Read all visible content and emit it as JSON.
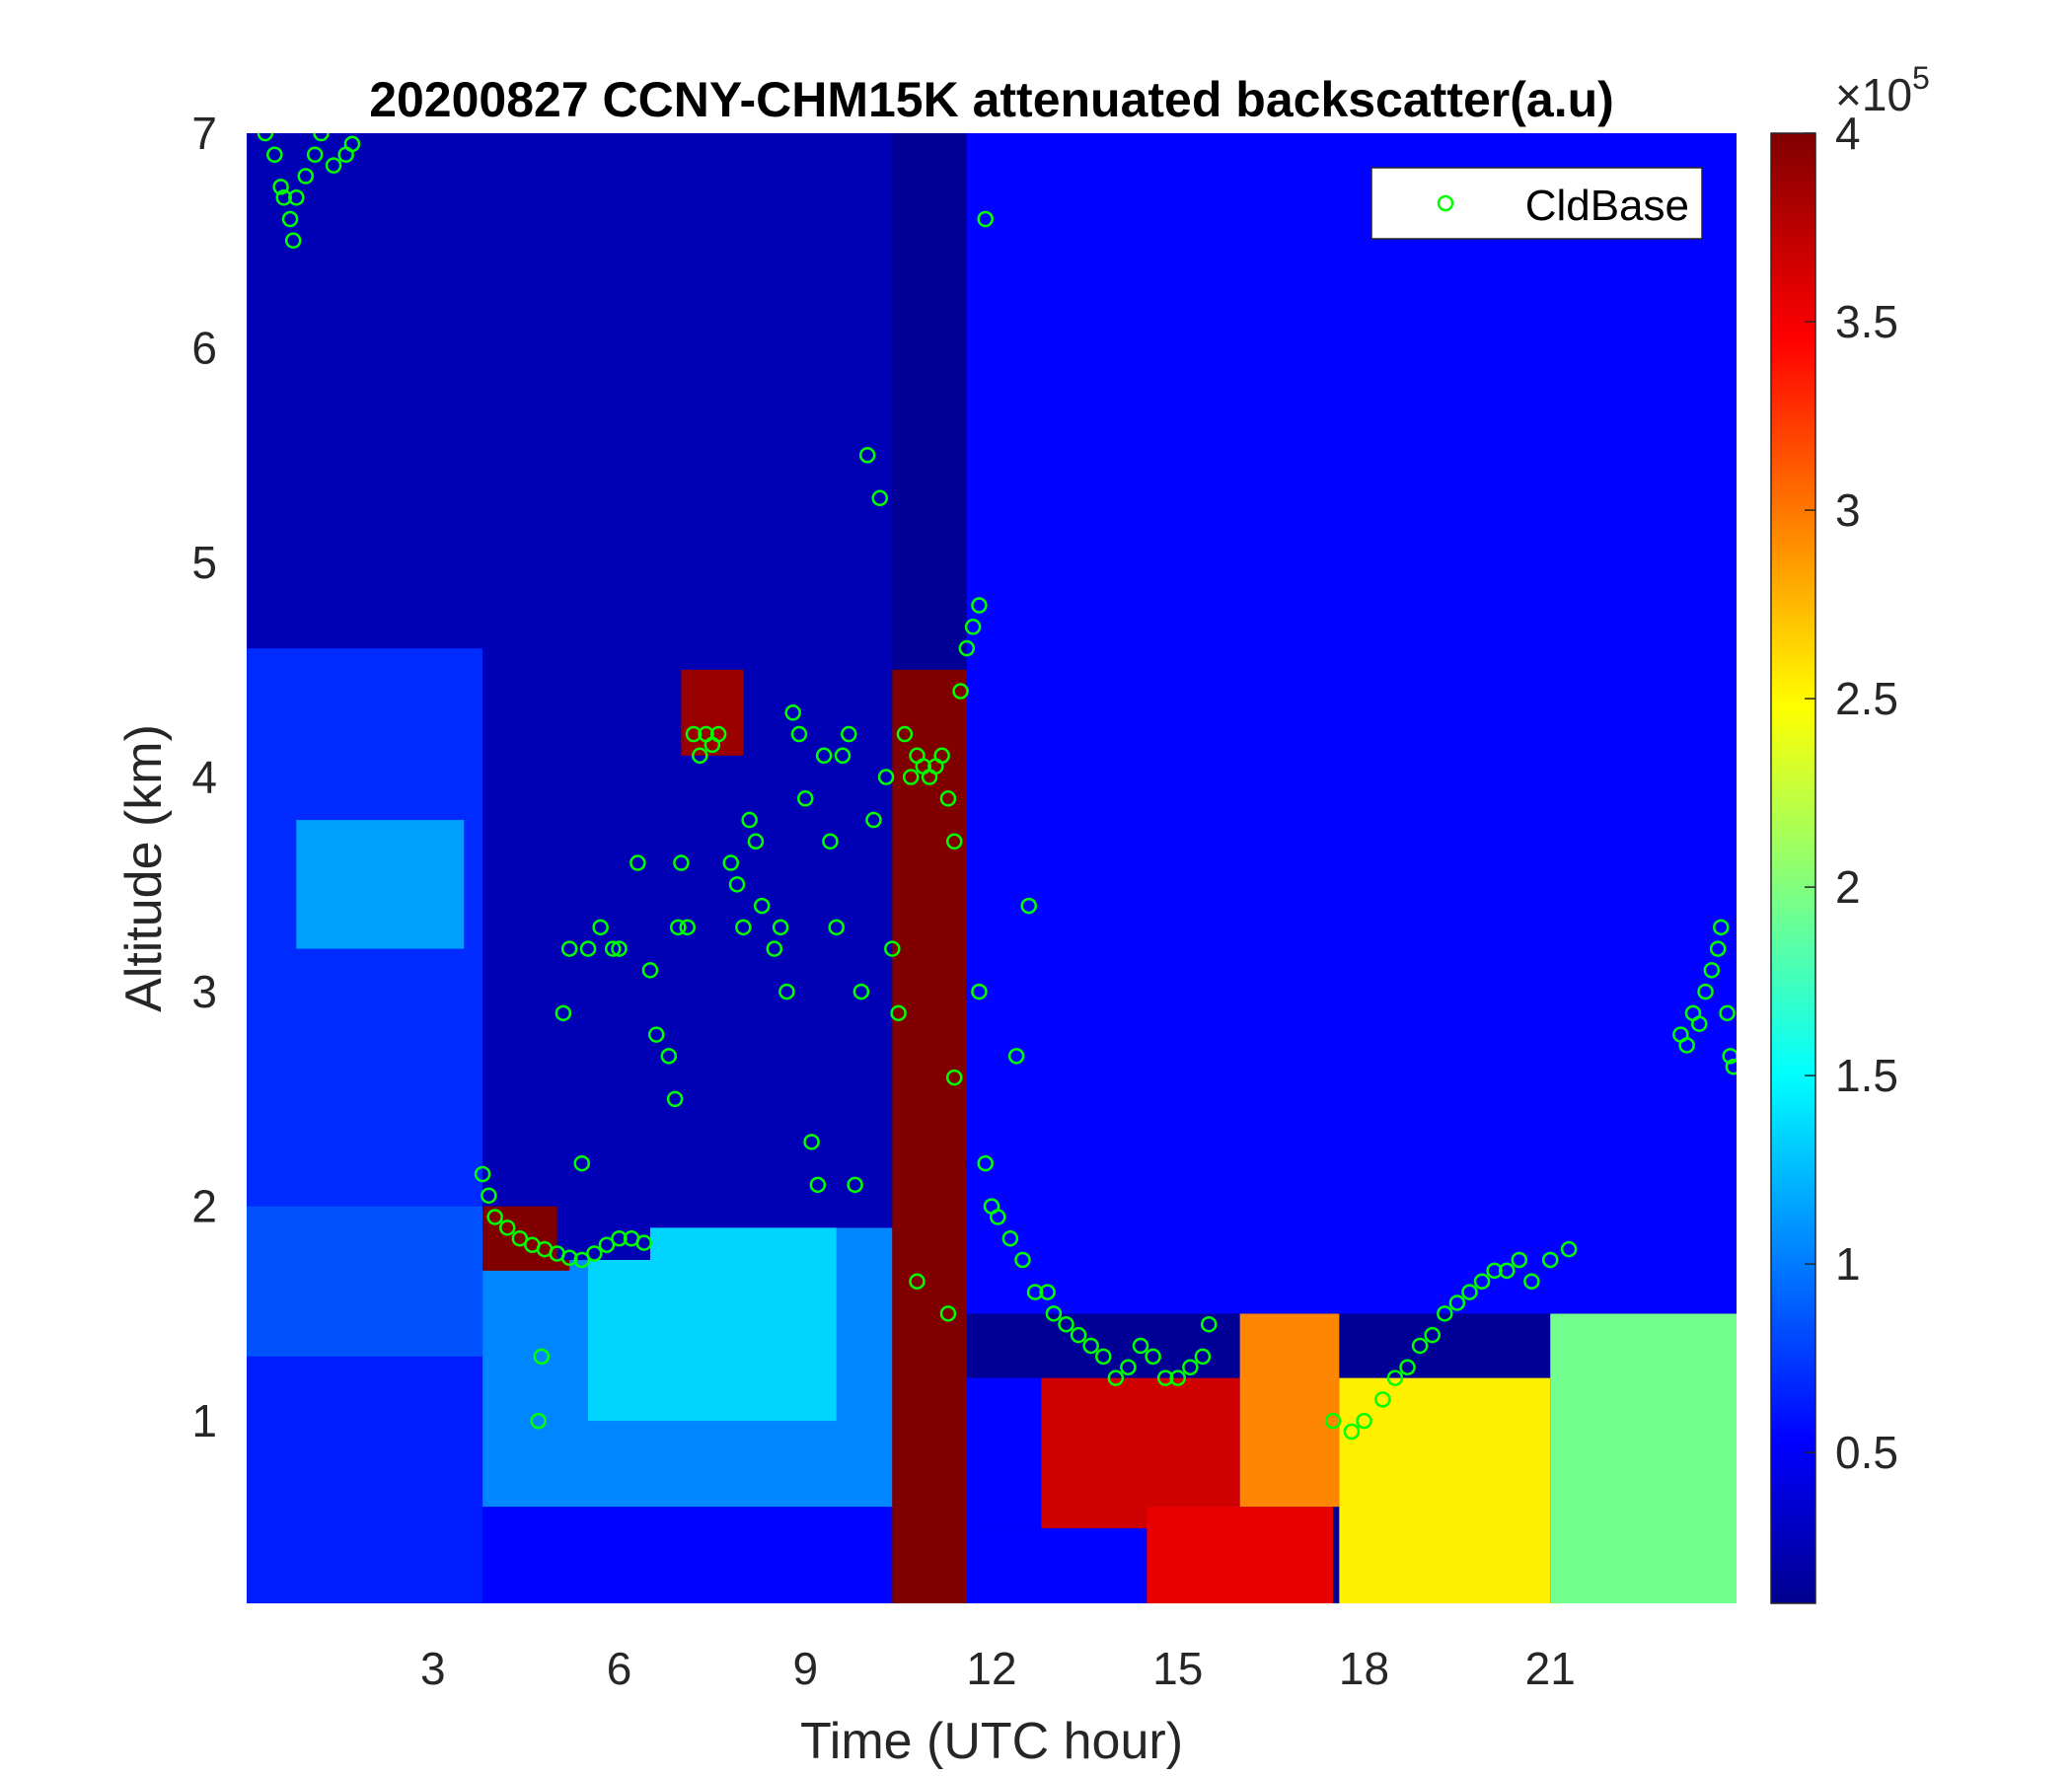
{
  "chart_data": {
    "type": "heatmap",
    "title": "20200827 CCNY-CHM15K attenuated backscatter(a.u)",
    "xlabel": "Time (UTC hour)",
    "ylabel": "Altitude (km)",
    "xlim": [
      0,
      24
    ],
    "ylim": [
      0.15,
      7
    ],
    "xticks": [
      3,
      6,
      9,
      12,
      15,
      18,
      21
    ],
    "yticks": [
      1,
      2,
      3,
      4,
      5,
      6,
      7
    ],
    "colormap": "jet",
    "colorbar": {
      "range": [
        0.1,
        4
      ],
      "ticks": [
        0.5,
        1,
        1.5,
        2,
        2.5,
        3,
        3.5,
        4
      ],
      "tick_labels": [
        "0.5",
        "1",
        "1.5",
        "2",
        "2.5",
        "3",
        "3.5",
        "4"
      ],
      "multiplier": "×10",
      "exponent": "5"
    },
    "legend": {
      "position": "top-right",
      "entries": [
        {
          "label": "CldBase",
          "marker": "circle",
          "color": "#00ff00"
        }
      ]
    },
    "series": [
      {
        "name": "CldBase",
        "marker_color": "#00ff00",
        "points": [
          [
            0.3,
            7.0
          ],
          [
            0.45,
            6.9
          ],
          [
            0.55,
            6.75
          ],
          [
            0.6,
            6.7
          ],
          [
            0.7,
            6.6
          ],
          [
            0.75,
            6.5
          ],
          [
            0.8,
            6.7
          ],
          [
            0.95,
            6.8
          ],
          [
            1.1,
            6.9
          ],
          [
            1.2,
            7.0
          ],
          [
            1.4,
            6.85
          ],
          [
            1.6,
            6.9
          ],
          [
            1.7,
            6.95
          ],
          [
            3.8,
            2.15
          ],
          [
            3.9,
            2.05
          ],
          [
            4.0,
            1.95
          ],
          [
            4.2,
            1.9
          ],
          [
            4.4,
            1.85
          ],
          [
            4.6,
            1.82
          ],
          [
            4.8,
            1.8
          ],
          [
            5.0,
            1.78
          ],
          [
            5.2,
            1.76
          ],
          [
            5.4,
            1.75
          ],
          [
            5.6,
            1.78
          ],
          [
            5.8,
            1.82
          ],
          [
            6.0,
            1.85
          ],
          [
            6.2,
            1.85
          ],
          [
            6.4,
            1.83
          ],
          [
            4.7,
            1.0
          ],
          [
            4.75,
            1.3
          ],
          [
            5.1,
            2.9
          ],
          [
            5.2,
            3.2
          ],
          [
            5.4,
            2.2
          ],
          [
            5.5,
            3.2
          ],
          [
            5.7,
            3.3
          ],
          [
            5.9,
            3.2
          ],
          [
            6.0,
            3.2
          ],
          [
            6.3,
            3.6
          ],
          [
            6.5,
            3.1
          ],
          [
            6.6,
            2.8
          ],
          [
            6.8,
            2.7
          ],
          [
            6.9,
            2.5
          ],
          [
            6.95,
            3.3
          ],
          [
            7.0,
            3.6
          ],
          [
            7.1,
            3.3
          ],
          [
            7.2,
            4.2
          ],
          [
            7.3,
            4.1
          ],
          [
            7.4,
            4.2
          ],
          [
            7.5,
            4.15
          ],
          [
            7.6,
            4.2
          ],
          [
            7.8,
            3.6
          ],
          [
            7.9,
            3.5
          ],
          [
            8.0,
            3.3
          ],
          [
            8.1,
            3.8
          ],
          [
            8.2,
            3.7
          ],
          [
            8.3,
            3.4
          ],
          [
            8.5,
            3.2
          ],
          [
            8.6,
            3.3
          ],
          [
            8.7,
            3.0
          ],
          [
            8.8,
            4.3
          ],
          [
            8.9,
            4.2
          ],
          [
            9.0,
            3.9
          ],
          [
            9.1,
            2.3
          ],
          [
            9.2,
            2.1
          ],
          [
            9.3,
            4.1
          ],
          [
            9.4,
            3.7
          ],
          [
            9.5,
            3.3
          ],
          [
            9.6,
            4.1
          ],
          [
            9.7,
            4.2
          ],
          [
            9.8,
            2.1
          ],
          [
            9.9,
            3.0
          ],
          [
            10.0,
            5.5
          ],
          [
            10.1,
            3.8
          ],
          [
            10.2,
            5.3
          ],
          [
            10.3,
            4.0
          ],
          [
            10.4,
            3.2
          ],
          [
            10.5,
            2.9
          ],
          [
            10.6,
            4.2
          ],
          [
            10.7,
            4.0
          ],
          [
            10.8,
            4.1
          ],
          [
            10.9,
            4.05
          ],
          [
            11.0,
            4.0
          ],
          [
            11.1,
            4.05
          ],
          [
            11.2,
            4.1
          ],
          [
            11.3,
            3.9
          ],
          [
            11.4,
            3.7
          ],
          [
            11.5,
            4.4
          ],
          [
            11.6,
            4.6
          ],
          [
            11.7,
            4.7
          ],
          [
            11.8,
            4.8
          ],
          [
            11.9,
            6.6
          ],
          [
            10.8,
            1.65
          ],
          [
            11.3,
            1.5
          ],
          [
            11.4,
            2.6
          ],
          [
            11.8,
            3.0
          ],
          [
            11.9,
            2.2
          ],
          [
            12.0,
            2.0
          ],
          [
            12.1,
            1.95
          ],
          [
            12.3,
            1.85
          ],
          [
            12.4,
            2.7
          ],
          [
            12.5,
            1.75
          ],
          [
            12.6,
            3.4
          ],
          [
            12.7,
            1.6
          ],
          [
            12.9,
            1.6
          ],
          [
            13.0,
            1.5
          ],
          [
            13.2,
            1.45
          ],
          [
            13.4,
            1.4
          ],
          [
            13.6,
            1.35
          ],
          [
            13.8,
            1.3
          ],
          [
            14.0,
            1.2
          ],
          [
            14.2,
            1.25
          ],
          [
            14.4,
            1.35
          ],
          [
            14.6,
            1.3
          ],
          [
            14.8,
            1.2
          ],
          [
            15.0,
            1.2
          ],
          [
            15.2,
            1.25
          ],
          [
            15.4,
            1.3
          ],
          [
            15.5,
            1.45
          ],
          [
            17.5,
            1.0
          ],
          [
            17.8,
            0.95
          ],
          [
            18.0,
            1.0
          ],
          [
            18.3,
            1.1
          ],
          [
            18.5,
            1.2
          ],
          [
            18.7,
            1.25
          ],
          [
            18.9,
            1.35
          ],
          [
            19.1,
            1.4
          ],
          [
            19.3,
            1.5
          ],
          [
            19.5,
            1.55
          ],
          [
            19.7,
            1.6
          ],
          [
            19.9,
            1.65
          ],
          [
            20.1,
            1.7
          ],
          [
            20.3,
            1.7
          ],
          [
            20.5,
            1.75
          ],
          [
            20.7,
            1.65
          ],
          [
            21.0,
            1.75
          ],
          [
            21.3,
            1.8
          ],
          [
            23.1,
            2.8
          ],
          [
            23.2,
            2.75
          ],
          [
            23.3,
            2.9
          ],
          [
            23.4,
            2.85
          ],
          [
            23.5,
            3.0
          ],
          [
            23.6,
            3.1
          ],
          [
            23.7,
            3.2
          ],
          [
            23.75,
            3.3
          ],
          [
            23.85,
            2.9
          ],
          [
            23.9,
            2.7
          ],
          [
            23.95,
            2.65
          ]
        ]
      }
    ],
    "regions": [
      {
        "x": [
          0,
          3.8
        ],
        "y": [
          0.15,
          1.3
        ],
        "value": 0.7
      },
      {
        "x": [
          0,
          3.8
        ],
        "y": [
          1.3,
          2.0
        ],
        "value": 0.9
      },
      {
        "x": [
          0,
          3.8
        ],
        "y": [
          2.0,
          4.6
        ],
        "value": 0.75
      },
      {
        "x": [
          0,
          3.8
        ],
        "y": [
          4.6,
          7.0
        ],
        "value": 0.3
      },
      {
        "x": [
          0.8,
          3.5
        ],
        "y": [
          3.2,
          3.8
        ],
        "value": 1.2
      },
      {
        "x": [
          3.8,
          10.4
        ],
        "y": [
          0.15,
          0.6
        ],
        "value": 0.6
      },
      {
        "x": [
          3.8,
          10.4
        ],
        "y": [
          0.6,
          1.9
        ],
        "value": 1.1
      },
      {
        "x": [
          5.5,
          9.5
        ],
        "y": [
          1.0,
          2.4
        ],
        "value": 1.4
      },
      {
        "x": [
          3.8,
          10.4
        ],
        "y": [
          1.9,
          7.0
        ],
        "value": 0.3
      },
      {
        "x": [
          3.8,
          5.2
        ],
        "y": [
          1.7,
          2.0
        ],
        "value": 4.0
      },
      {
        "x": [
          5.0,
          6.5
        ],
        "y": [
          1.75,
          3.5
        ],
        "value": 0.3
      },
      {
        "x": [
          7.0,
          8.0
        ],
        "y": [
          4.1,
          4.5
        ],
        "value": 3.9
      },
      {
        "x": [
          10.4,
          11.6
        ],
        "y": [
          0.15,
          4.5
        ],
        "value": 4.0
      },
      {
        "x": [
          11.6,
          14.8
        ],
        "y": [
          0.15,
          0.5
        ],
        "value": 0.6
      },
      {
        "x": [
          11.6,
          14.0
        ],
        "y": [
          0.5,
          1.2
        ],
        "value": 0.6
      },
      {
        "x": [
          12.8,
          16.0
        ],
        "y": [
          0.5,
          1.2
        ],
        "value": 3.7
      },
      {
        "x": [
          14.5,
          17.5
        ],
        "y": [
          0.15,
          0.6
        ],
        "value": 3.6
      },
      {
        "x": [
          16.0,
          17.6
        ],
        "y": [
          0.6,
          1.5
        ],
        "value": 3.0
      },
      {
        "x": [
          17.6,
          21.0
        ],
        "y": [
          0.15,
          1.2
        ],
        "value": 2.6
      },
      {
        "x": [
          21.0,
          24.0
        ],
        "y": [
          0.15,
          1.5
        ],
        "value": 2.0
      },
      {
        "x": [
          11.6,
          24.0
        ],
        "y": [
          1.5,
          7.0
        ],
        "value": 0.6
      }
    ]
  }
}
